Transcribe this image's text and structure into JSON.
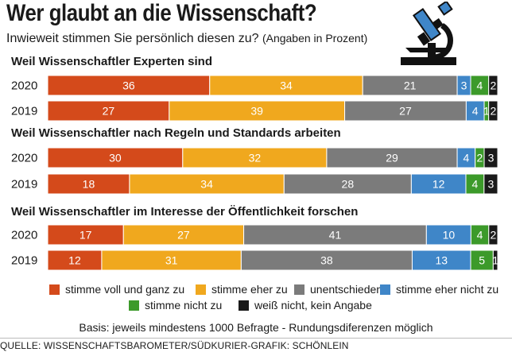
{
  "title": "Wer glaubt an die Wissenschaft?",
  "subtitle_main": "Inwieweit stimmen Sie persönlich diesen zu?",
  "subtitle_note": "(Angaben in Prozent)",
  "footnote": "Basis: jeweils mindestens 1000 Befragte - Rundungsdiferenzen möglich",
  "source": "QUELLE: WISSENSCHAFTSBAROMETER/SÜDKURIER-GRAFIK: SCHÖNLEIN",
  "icon": "microscope-icon",
  "colors": {
    "stimme voll und ganz zu": "#d44a1b",
    "stimme eher zu": "#f0a81e",
    "unentschieden": "#7b7b7b",
    "stimme eher nicht zu": "#3f86c8",
    "stimme nicht zu": "#3c9a2a",
    "weiß nicht, kein Angabe": "#1a1a1a"
  },
  "legend": [
    "stimme voll und ganz zu",
    "stimme eher zu",
    "unentschieden",
    "stimme eher nicht zu",
    "stimme nicht zu",
    "weiß nicht, kein Angabe"
  ],
  "chart_data": {
    "type": "bar",
    "orientation": "horizontal-stacked",
    "title": "Wer glaubt an die Wissenschaft?",
    "unit": "Prozent",
    "series_order": [
      "stimme voll und ganz zu",
      "stimme eher zu",
      "unentschieden",
      "stimme eher nicht zu",
      "stimme nicht zu",
      "weiß nicht, kein Angabe"
    ],
    "groups": [
      {
        "label": "Weil Wissenschaftler Experten sind",
        "rows": [
          {
            "year": "2020",
            "values": [
              36,
              34,
              21,
              3,
              4,
              2
            ]
          },
          {
            "year": "2019",
            "values": [
              27,
              39,
              27,
              4,
              1,
              2
            ]
          }
        ]
      },
      {
        "label": "Weil Wissenschaftler nach Regeln und Standards arbeiten",
        "rows": [
          {
            "year": "2020",
            "values": [
              30,
              32,
              29,
              4,
              2,
              3
            ]
          },
          {
            "year": "2019",
            "values": [
              18,
              34,
              28,
              12,
              4,
              3
            ]
          }
        ]
      },
      {
        "label": "Weil Wissenschaftler im Interesse der Öffentlichkeit forschen",
        "rows": [
          {
            "year": "2020",
            "values": [
              17,
              27,
              41,
              10,
              4,
              2
            ]
          },
          {
            "year": "2019",
            "values": [
              12,
              31,
              38,
              13,
              5,
              1
            ]
          }
        ]
      }
    ]
  }
}
